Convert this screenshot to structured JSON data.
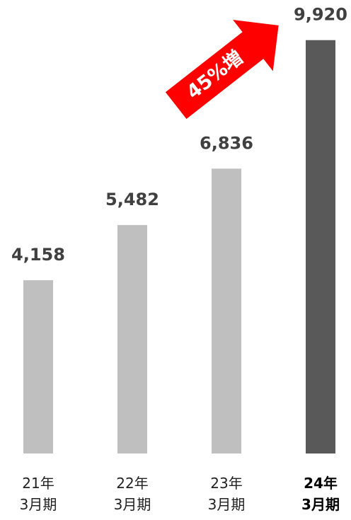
{
  "chart_data": {
    "type": "bar",
    "categories": [
      "21年\n3月期",
      "22年\n3月期",
      "23年\n3月期",
      "24年\n3月期"
    ],
    "values": [
      4158,
      5482,
      6836,
      9920
    ],
    "value_labels": [
      "4,158",
      "5,482",
      "6,836",
      "9,920"
    ],
    "colors": [
      "#bfbfbf",
      "#bfbfbf",
      "#bfbfbf",
      "#595959"
    ],
    "emphasis": [
      false,
      false,
      false,
      true
    ],
    "annotation": "45%増",
    "ylim": [
      0,
      10000
    ]
  }
}
